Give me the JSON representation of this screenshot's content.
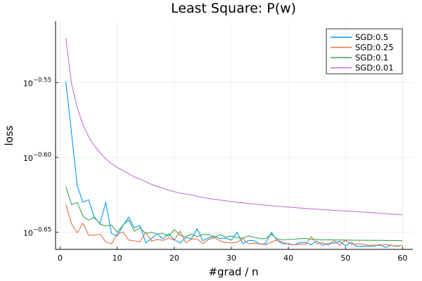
{
  "chart_data": {
    "type": "line",
    "title": "Least Square: P(w)",
    "xlabel": "#grad / n",
    "ylabel": "loss",
    "yscale": "log10",
    "xlim": [
      -0.8,
      61.8
    ],
    "ylim_log10": [
      -0.6615,
      -0.5088
    ],
    "x_ticks": [
      0,
      10,
      20,
      30,
      40,
      50,
      60
    ],
    "y_ticks_log10": [
      -0.65,
      -0.6,
      -0.55
    ],
    "y_tick_labels": [
      {
        "base": "10",
        "exp": "−0.65"
      },
      {
        "base": "10",
        "exp": "−0.60"
      },
      {
        "base": "10",
        "exp": "−0.55"
      }
    ],
    "grid": true,
    "legend_position": "top-right",
    "series": [
      {
        "name": "SGD:0.5",
        "color": "#009AFA",
        "x": [
          1,
          2,
          3,
          4,
          5,
          6,
          7,
          8,
          9,
          10,
          11,
          12,
          13,
          14,
          15,
          16,
          17,
          18,
          19,
          20,
          21,
          22,
          23,
          24,
          25,
          26,
          27,
          28,
          29,
          30,
          31,
          32,
          33,
          34,
          35,
          36,
          37,
          38,
          39,
          40,
          41,
          42,
          43,
          44,
          45,
          46,
          47,
          48,
          49,
          50,
          51,
          52,
          53,
          54,
          55,
          56,
          57,
          58,
          59,
          60
        ],
        "log10_values": [
          -0.5493,
          -0.5838,
          -0.6191,
          -0.6299,
          -0.6283,
          -0.6405,
          -0.6441,
          -0.6299,
          -0.6509,
          -0.6526,
          -0.6456,
          -0.6399,
          -0.6471,
          -0.6455,
          -0.6571,
          -0.6543,
          -0.6511,
          -0.6544,
          -0.651,
          -0.655,
          -0.6573,
          -0.6535,
          -0.6545,
          -0.6477,
          -0.6557,
          -0.6538,
          -0.6526,
          -0.6544,
          -0.654,
          -0.6553,
          -0.65,
          -0.6577,
          -0.6555,
          -0.6557,
          -0.6581,
          -0.6575,
          -0.6501,
          -0.6554,
          -0.6578,
          -0.6576,
          -0.6586,
          -0.6568,
          -0.657,
          -0.6583,
          -0.6559,
          -0.6587,
          -0.6575,
          -0.6573,
          -0.6561,
          -0.6591,
          -0.6568,
          -0.6595,
          -0.6594,
          -0.6596,
          -0.6595,
          -0.6582,
          -0.6603,
          -0.6587,
          -0.6595,
          -0.6588
        ]
      },
      {
        "name": "SGD:0.25",
        "color": "#E26F46",
        "x": [
          1,
          2,
          3,
          4,
          5,
          6,
          7,
          8,
          9,
          10,
          11,
          12,
          13,
          14,
          15,
          16,
          17,
          18,
          19,
          20,
          21,
          22,
          23,
          24,
          25,
          26,
          27,
          28,
          29,
          30,
          31,
          32,
          33,
          34,
          35,
          36,
          37,
          38,
          39,
          40,
          41,
          42,
          43,
          44,
          45,
          46,
          47,
          48,
          49,
          50,
          51,
          52,
          53,
          54,
          55,
          56,
          57,
          58,
          59,
          60
        ],
        "log10_values": [
          -0.6313,
          -0.6445,
          -0.6504,
          -0.644,
          -0.6521,
          -0.6519,
          -0.6514,
          -0.6564,
          -0.6579,
          -0.6512,
          -0.6498,
          -0.6553,
          -0.6558,
          -0.6564,
          -0.6501,
          -0.656,
          -0.6549,
          -0.6555,
          -0.6539,
          -0.6553,
          -0.6493,
          -0.657,
          -0.6547,
          -0.6544,
          -0.6576,
          -0.6549,
          -0.6537,
          -0.6559,
          -0.6569,
          -0.6572,
          -0.6567,
          -0.6543,
          -0.6578,
          -0.6574,
          -0.6578,
          -0.6584,
          -0.6566,
          -0.6553,
          -0.6567,
          -0.658,
          -0.6585,
          -0.6579,
          -0.6583,
          -0.653,
          -0.6579,
          -0.657,
          -0.6586,
          -0.6557,
          -0.6586,
          -0.6554,
          -0.6582,
          -0.6578,
          -0.658,
          -0.6589,
          -0.6586,
          -0.6589,
          -0.6582,
          -0.6589,
          -0.6591,
          -0.659
        ]
      },
      {
        "name": "SGD:0.1",
        "color": "#3EA44E",
        "x": [
          1,
          2,
          3,
          4,
          5,
          6,
          7,
          8,
          9,
          10,
          11,
          12,
          13,
          14,
          15,
          16,
          17,
          18,
          19,
          20,
          21,
          22,
          23,
          24,
          25,
          26,
          27,
          28,
          29,
          30,
          31,
          32,
          33,
          34,
          35,
          36,
          37,
          38,
          39,
          40,
          41,
          42,
          43,
          44,
          45,
          46,
          47,
          48,
          49,
          50,
          51,
          52,
          53,
          54,
          55,
          56,
          57,
          58,
          59,
          60
        ],
        "log10_values": [
          -0.6193,
          -0.6315,
          -0.6301,
          -0.6392,
          -0.6421,
          -0.6398,
          -0.6448,
          -0.6458,
          -0.6452,
          -0.6501,
          -0.6453,
          -0.6418,
          -0.6493,
          -0.6472,
          -0.6508,
          -0.6501,
          -0.6511,
          -0.6508,
          -0.6527,
          -0.6483,
          -0.652,
          -0.6531,
          -0.6511,
          -0.653,
          -0.6516,
          -0.6515,
          -0.6534,
          -0.6517,
          -0.6533,
          -0.6525,
          -0.6537,
          -0.6539,
          -0.6525,
          -0.6534,
          -0.6543,
          -0.6543,
          -0.6513,
          -0.6545,
          -0.6551,
          -0.6548,
          -0.6548,
          -0.6543,
          -0.6542,
          -0.6547,
          -0.6548,
          -0.6552,
          -0.655,
          -0.6552,
          -0.6552,
          -0.6553,
          -0.6553,
          -0.6554,
          -0.6554,
          -0.6554,
          -0.6555,
          -0.6555,
          -0.6556,
          -0.6556,
          -0.6556,
          -0.6557
        ]
      },
      {
        "name": "SGD:0.01",
        "color": "#C271D2",
        "x": [
          1,
          2,
          3,
          4,
          5,
          6,
          7,
          8,
          9,
          10,
          11,
          12,
          13,
          14,
          15,
          16,
          17,
          18,
          19,
          20,
          21,
          22,
          23,
          24,
          25,
          26,
          27,
          28,
          29,
          30,
          31,
          32,
          33,
          34,
          35,
          36,
          37,
          38,
          39,
          40,
          41,
          42,
          43,
          44,
          45,
          46,
          47,
          48,
          49,
          50,
          51,
          52,
          53,
          54,
          55,
          56,
          57,
          58,
          59,
          60
        ],
        "log10_values": [
          -0.5202,
          -0.5506,
          -0.5668,
          -0.5782,
          -0.5862,
          -0.5922,
          -0.5969,
          -0.601,
          -0.6041,
          -0.6067,
          -0.6087,
          -0.6109,
          -0.613,
          -0.6146,
          -0.6162,
          -0.618,
          -0.6193,
          -0.6206,
          -0.6219,
          -0.6229,
          -0.6239,
          -0.6245,
          -0.625,
          -0.626,
          -0.6268,
          -0.6274,
          -0.628,
          -0.6285,
          -0.629,
          -0.6295,
          -0.63,
          -0.6304,
          -0.6308,
          -0.6312,
          -0.6316,
          -0.6319,
          -0.6323,
          -0.6326,
          -0.6329,
          -0.6332,
          -0.6335,
          -0.6338,
          -0.6341,
          -0.6344,
          -0.6346,
          -0.6349,
          -0.6351,
          -0.6354,
          -0.6356,
          -0.6358,
          -0.636,
          -0.6363,
          -0.6366,
          -0.6368,
          -0.6371,
          -0.6373,
          -0.6376,
          -0.6379,
          -0.6381,
          -0.6384
        ]
      }
    ]
  }
}
